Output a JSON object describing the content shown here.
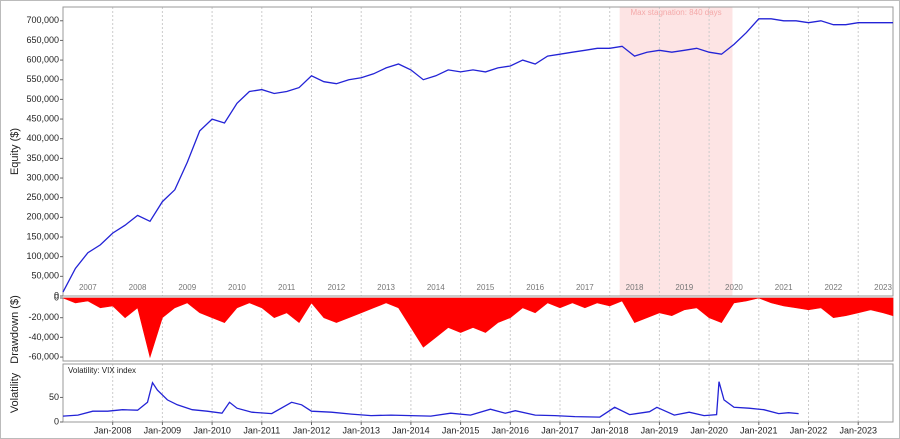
{
  "chart_data": [
    {
      "type": "line",
      "y_label": "Equity ($)",
      "color": "#2323d6",
      "xlim": [
        2007.0,
        2023.7
      ],
      "ylim": [
        0,
        735000
      ],
      "yticks": [
        0,
        {
          "value": 50000,
          "label": "50,000"
        },
        {
          "value": 100000,
          "label": "100,000"
        },
        {
          "value": 150000,
          "label": "150,000"
        },
        {
          "value": 200000,
          "label": "200,000"
        },
        {
          "value": 250000,
          "label": "250,000"
        },
        {
          "value": 300000,
          "label": "300,000"
        },
        {
          "value": 350000,
          "label": "350,000"
        },
        {
          "value": 400000,
          "label": "400,000"
        },
        {
          "value": 450000,
          "label": "450,000"
        },
        {
          "value": 500000,
          "label": "500,000"
        },
        {
          "value": 550000,
          "label": "550,000"
        },
        {
          "value": 600000,
          "label": "600,000"
        },
        {
          "value": 650000,
          "label": "650,000"
        },
        {
          "value": 700000,
          "label": "700,000"
        }
      ],
      "year_labels": [
        "2007",
        "2008",
        "2009",
        "2010",
        "2011",
        "2012",
        "2013",
        "2014",
        "2015",
        "2016",
        "2017",
        "2018",
        "2019",
        "2020",
        "2021",
        "2022",
        "2023"
      ],
      "stagnation": {
        "start": 2018.2,
        "end": 2020.47,
        "label": "Max stagnation: 840 days",
        "color": "#fde4e4"
      },
      "x": [
        2007.0,
        2007.25,
        2007.5,
        2007.75,
        2008.0,
        2008.25,
        2008.5,
        2008.75,
        2009.0,
        2009.25,
        2009.5,
        2009.75,
        2010.0,
        2010.25,
        2010.5,
        2010.75,
        2011.0,
        2011.25,
        2011.5,
        2011.75,
        2012.0,
        2012.25,
        2012.5,
        2012.75,
        2013.0,
        2013.25,
        2013.5,
        2013.75,
        2014.0,
        2014.25,
        2014.5,
        2014.75,
        2015.0,
        2015.25,
        2015.5,
        2015.75,
        2016.0,
        2016.25,
        2016.5,
        2016.75,
        2017.0,
        2017.25,
        2017.5,
        2017.75,
        2018.0,
        2018.25,
        2018.5,
        2018.75,
        2019.0,
        2019.25,
        2019.5,
        2019.75,
        2020.0,
        2020.25,
        2020.5,
        2020.75,
        2021.0,
        2021.25,
        2021.5,
        2021.75,
        2022.0,
        2022.25,
        2022.5,
        2022.75,
        2023.0,
        2023.25,
        2023.5,
        2023.7
      ],
      "values": [
        10000,
        70000,
        110000,
        130000,
        160000,
        180000,
        205000,
        190000,
        240000,
        270000,
        340000,
        420000,
        450000,
        440000,
        490000,
        520000,
        525000,
        515000,
        520000,
        530000,
        560000,
        545000,
        540000,
        550000,
        555000,
        565000,
        580000,
        590000,
        575000,
        550000,
        560000,
        575000,
        570000,
        575000,
        570000,
        580000,
        585000,
        600000,
        590000,
        610000,
        615000,
        620000,
        625000,
        630000,
        630000,
        635000,
        610000,
        620000,
        625000,
        620000,
        625000,
        630000,
        620000,
        615000,
        640000,
        670000,
        705000,
        705000,
        700000,
        700000,
        695000,
        700000,
        690000,
        690000,
        695000,
        695000,
        695000,
        695000
      ]
    },
    {
      "type": "area",
      "y_label": "Drawdown ($)",
      "color": "#ff0000",
      "xlim": [
        2007.0,
        2023.7
      ],
      "ylim": [
        -64000,
        0
      ],
      "yticks": [
        0,
        {
          "value": -20000,
          "label": "-20,000"
        },
        {
          "value": -40000,
          "label": "-40,000"
        },
        {
          "value": -60000,
          "label": "-60,000"
        }
      ],
      "x": [
        2007.0,
        2007.25,
        2007.5,
        2007.75,
        2008.0,
        2008.25,
        2008.5,
        2008.75,
        2009.0,
        2009.25,
        2009.5,
        2009.75,
        2010.0,
        2010.25,
        2010.5,
        2010.75,
        2011.0,
        2011.25,
        2011.5,
        2011.75,
        2012.0,
        2012.25,
        2012.5,
        2012.75,
        2013.0,
        2013.25,
        2013.5,
        2013.75,
        2014.0,
        2014.25,
        2014.5,
        2014.75,
        2015.0,
        2015.25,
        2015.5,
        2015.75,
        2016.0,
        2016.25,
        2016.5,
        2016.75,
        2017.0,
        2017.25,
        2017.5,
        2017.75,
        2018.0,
        2018.25,
        2018.5,
        2018.75,
        2019.0,
        2019.25,
        2019.5,
        2019.75,
        2020.0,
        2020.25,
        2020.5,
        2020.75,
        2021.0,
        2021.25,
        2021.5,
        2021.75,
        2022.0,
        2022.25,
        2022.5,
        2022.75,
        2023.0,
        2023.25,
        2023.5,
        2023.7
      ],
      "values": [
        0,
        -5000,
        -3000,
        -10000,
        -8000,
        -20000,
        -10000,
        -60000,
        -20000,
        -10000,
        -5000,
        -15000,
        -20000,
        -25000,
        -10000,
        -5000,
        -10000,
        -20000,
        -15000,
        -25000,
        -5000,
        -20000,
        -25000,
        -20000,
        -15000,
        -10000,
        -5000,
        -10000,
        -30000,
        -50000,
        -40000,
        -30000,
        -35000,
        -30000,
        -35000,
        -25000,
        -20000,
        -10000,
        -15000,
        -5000,
        -10000,
        -5000,
        -10000,
        -5000,
        -8000,
        -3000,
        -25000,
        -20000,
        -15000,
        -18000,
        -12000,
        -10000,
        -20000,
        -25000,
        -5000,
        -3000,
        0,
        -5000,
        -8000,
        -10000,
        -12000,
        -10000,
        -20000,
        -18000,
        -15000,
        -12000,
        -15000,
        -18000
      ]
    },
    {
      "type": "line",
      "y_label": "Volatility",
      "title": "Volatility: VIX index",
      "color": "#2323d6",
      "xlim": [
        2007.0,
        2023.7
      ],
      "ylim": [
        0,
        118
      ],
      "yticks": [
        0,
        50
      ],
      "xticks": [
        {
          "value": 2008,
          "label": "Jan-2008"
        },
        {
          "value": 2009,
          "label": "Jan-2009"
        },
        {
          "value": 2010,
          "label": "Jan-2010"
        },
        {
          "value": 2011,
          "label": "Jan-2011"
        },
        {
          "value": 2012,
          "label": "Jan-2012"
        },
        {
          "value": 2013,
          "label": "Jan-2013"
        },
        {
          "value": 2014,
          "label": "Jan-2014"
        },
        {
          "value": 2015,
          "label": "Jan-2015"
        },
        {
          "value": 2016,
          "label": "Jan-2016"
        },
        {
          "value": 2017,
          "label": "Jan-2017"
        },
        {
          "value": 2018,
          "label": "Jan-2018"
        },
        {
          "value": 2019,
          "label": "Jan-2019"
        },
        {
          "value": 2020,
          "label": "Jan-2020"
        },
        {
          "value": 2021,
          "label": "Jan-2021"
        },
        {
          "value": 2022,
          "label": "Jan-2022"
        },
        {
          "value": 2023,
          "label": "Jan-2023"
        }
      ],
      "x": [
        2007.0,
        2007.3,
        2007.6,
        2007.9,
        2008.2,
        2008.5,
        2008.7,
        2008.8,
        2008.9,
        2009.1,
        2009.3,
        2009.6,
        2009.9,
        2010.2,
        2010.35,
        2010.5,
        2010.8,
        2011.2,
        2011.6,
        2011.8,
        2012.0,
        2012.4,
        2012.8,
        2013.2,
        2013.6,
        2014.0,
        2014.4,
        2014.8,
        2015.2,
        2015.6,
        2015.9,
        2016.1,
        2016.5,
        2016.9,
        2017.3,
        2017.8,
        2018.1,
        2018.4,
        2018.8,
        2018.95,
        2019.3,
        2019.6,
        2019.9,
        2020.15,
        2020.2,
        2020.3,
        2020.5,
        2020.8,
        2021.1,
        2021.4,
        2021.6,
        2021.8
      ],
      "values": [
        12,
        14,
        22,
        22,
        25,
        24,
        40,
        80,
        65,
        45,
        35,
        25,
        22,
        18,
        40,
        28,
        20,
        17,
        40,
        35,
        22,
        20,
        16,
        13,
        14,
        13,
        12,
        18,
        14,
        26,
        18,
        23,
        14,
        13,
        11,
        10,
        30,
        15,
        21,
        30,
        14,
        20,
        13,
        15,
        82,
        45,
        30,
        28,
        25,
        17,
        19,
        17
      ]
    }
  ]
}
